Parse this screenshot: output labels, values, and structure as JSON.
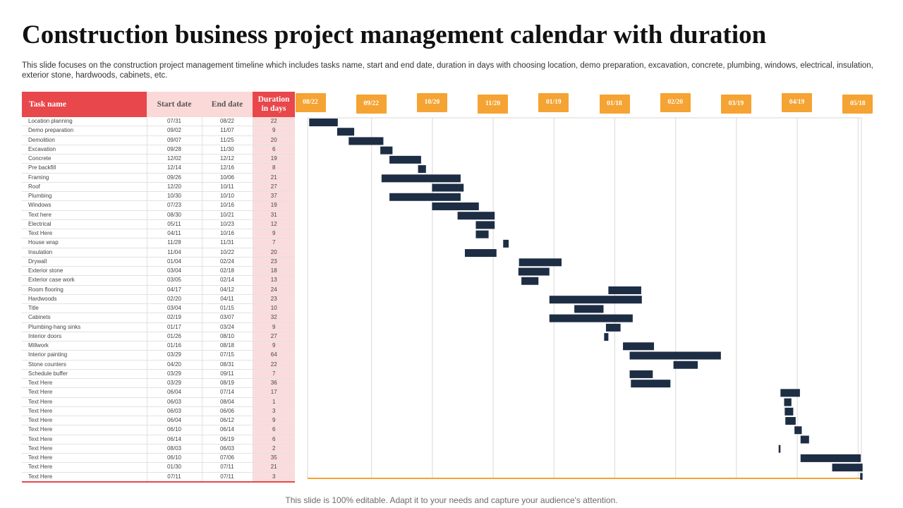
{
  "title": "Construction  business project management calendar with duration",
  "description": "This slide focuses on the construction project management timeline which includes tasks name, start and end date, duration in days with choosing location, demo preparation, excavation, concrete, plumbing, windows, electrical, insulation, exterior stone, hardwoods, cabinets, etc.",
  "footer": "This slide is 100% editable. Adapt it to your needs and capture your audience's attention.",
  "colors": {
    "accent_red": "#e8474b",
    "light_pink": "#fbd9d9",
    "orange": "#f5a333",
    "bar": "#1d2d44",
    "grid": "#d9d9d9"
  },
  "table": {
    "headers": {
      "task": "Task name",
      "start": "Start date",
      "end": "End date",
      "duration": "Duration in days"
    },
    "rows": [
      {
        "task": "Location  planning",
        "start": "07/31",
        "end": "08/22",
        "duration": "22"
      },
      {
        "task": "Demo preparation",
        "start": "09/02",
        "end": "11/07",
        "duration": "9"
      },
      {
        "task": "Demolition",
        "start": "09/07",
        "end": "11/25",
        "duration": "20"
      },
      {
        "task": "Excavation",
        "start": "09/28",
        "end": "11/30",
        "duration": "6"
      },
      {
        "task": "Concrete",
        "start": "12/02",
        "end": "12/12",
        "duration": "19"
      },
      {
        "task": "Pre backfill",
        "start": "12/14",
        "end": "12/16",
        "duration": "8"
      },
      {
        "task": "Framing",
        "start": "09/26",
        "end": "10/06",
        "duration": "21"
      },
      {
        "task": "Roof",
        "start": "12/20",
        "end": "10/11",
        "duration": "27"
      },
      {
        "task": "Plumbing",
        "start": "10/30",
        "end": "10/10",
        "duration": "37"
      },
      {
        "task": "Windows",
        "start": "07/23",
        "end": "10/16",
        "duration": "19"
      },
      {
        "task": "Text here",
        "start": "08/30",
        "end": "10/21",
        "duration": "31"
      },
      {
        "task": "Electrical",
        "start": "05/11",
        "end": "10/23",
        "duration": "12"
      },
      {
        "task": "Text Here",
        "start": "04/11",
        "end": "10/16",
        "duration": "9"
      },
      {
        "task": "House wrap",
        "start": "11/28",
        "end": "11/31",
        "duration": "7"
      },
      {
        "task": "Insulation",
        "start": "11/04",
        "end": "10/22",
        "duration": "20"
      },
      {
        "task": "Drywall",
        "start": "01/04",
        "end": "02/24",
        "duration": "23"
      },
      {
        "task": "Exterior stone",
        "start": "03/04",
        "end": "02/18",
        "duration": "18"
      },
      {
        "task": "Exterior case work",
        "start": "03/05",
        "end": "02/14",
        "duration": "13"
      },
      {
        "task": "Room flooring",
        "start": "04/17",
        "end": "04/12",
        "duration": "24"
      },
      {
        "task": "Hardwoods",
        "start": "02/20",
        "end": "04/11",
        "duration": "23"
      },
      {
        "task": "Title",
        "start": "03/04",
        "end": "01/15",
        "duration": "10"
      },
      {
        "task": "Cabinets",
        "start": "02/19",
        "end": "03/07",
        "duration": "32"
      },
      {
        "task": "Plumbing-hang  sinks",
        "start": "01/17",
        "end": "03/24",
        "duration": "9"
      },
      {
        "task": "Interior doors",
        "start": "01/26",
        "end": "08/10",
        "duration": "27"
      },
      {
        "task": "Millwork",
        "start": "01/16",
        "end": "08/18",
        "duration": "9"
      },
      {
        "task": "Interior painting",
        "start": "03/29",
        "end": "07/15",
        "duration": "64"
      },
      {
        "task": "Stone counters",
        "start": "04/20",
        "end": "08/31",
        "duration": "22"
      },
      {
        "task": "Schedule  buffer",
        "start": "03/29",
        "end": "09/11",
        "duration": "7"
      },
      {
        "task": "Text Here",
        "start": "03/29",
        "end": "08/19",
        "duration": "36"
      },
      {
        "task": "Text Here",
        "start": "06/04",
        "end": "07/14",
        "duration": "17"
      },
      {
        "task": "Text Here",
        "start": "06/03",
        "end": "08/04",
        "duration": "1"
      },
      {
        "task": "Text Here",
        "start": "06/03",
        "end": "06/06",
        "duration": "3"
      },
      {
        "task": "Text Here",
        "start": "06/04",
        "end": "06/12",
        "duration": "9"
      },
      {
        "task": "Text Here",
        "start": "06/10",
        "end": "06/14",
        "duration": "6"
      },
      {
        "task": "Text Here",
        "start": "06/14",
        "end": "06/19",
        "duration": "6"
      },
      {
        "task": "Text Here",
        "start": "08/03",
        "end": "06/03",
        "duration": "2"
      },
      {
        "task": "Text Here",
        "start": "06/10",
        "end": "07/06",
        "duration": "35"
      },
      {
        "task": "Text Here",
        "start": "01/30",
        "end": "07/11",
        "duration": "21"
      },
      {
        "task": "Text Here",
        "start": "07/11",
        "end": "07/11",
        "duration": "3"
      }
    ]
  },
  "chart_data": {
    "type": "gantt",
    "axis_labels": [
      "08/22",
      "09/22",
      "10/20",
      "11/20",
      "01/19",
      "01/18",
      "02/20",
      "03/19",
      "04/19",
      "05/18"
    ],
    "x_range": [
      -0.2,
      9.0
    ],
    "tasks": [
      {
        "start": -0.02,
        "end": 0.45
      },
      {
        "start": 0.44,
        "end": 0.72
      },
      {
        "start": 0.63,
        "end": 1.2
      },
      {
        "start": 1.15,
        "end": 1.35
      },
      {
        "start": 1.3,
        "end": 1.82
      },
      {
        "start": 1.77,
        "end": 1.9
      },
      {
        "start": 1.17,
        "end": 2.47
      },
      {
        "start": 2.0,
        "end": 2.52
      },
      {
        "start": 1.3,
        "end": 2.47
      },
      {
        "start": 2.0,
        "end": 2.77
      },
      {
        "start": 2.42,
        "end": 3.03
      },
      {
        "start": 2.72,
        "end": 3.03
      },
      {
        "start": 2.72,
        "end": 2.93
      },
      {
        "start": 3.17,
        "end": 3.26
      },
      {
        "start": 2.54,
        "end": 3.06
      },
      {
        "start": 3.43,
        "end": 4.13
      },
      {
        "start": 3.42,
        "end": 3.93
      },
      {
        "start": 3.47,
        "end": 3.75
      },
      {
        "start": 4.9,
        "end": 5.44
      },
      {
        "start": 3.93,
        "end": 5.45
      },
      {
        "start": 4.34,
        "end": 4.82
      },
      {
        "start": 3.93,
        "end": 5.3
      },
      {
        "start": 4.86,
        "end": 5.1
      },
      {
        "start": 4.83,
        "end": 4.9
      },
      {
        "start": 5.14,
        "end": 5.65
      },
      {
        "start": 5.25,
        "end": 6.75
      },
      {
        "start": 5.97,
        "end": 6.37
      },
      {
        "start": 5.25,
        "end": 5.63
      },
      {
        "start": 5.27,
        "end": 5.92
      },
      {
        "start": 7.73,
        "end": 8.05
      },
      {
        "start": 7.79,
        "end": 7.91
      },
      {
        "start": 7.8,
        "end": 7.94
      },
      {
        "start": 7.81,
        "end": 7.98
      },
      {
        "start": 7.96,
        "end": 8.08
      },
      {
        "start": 8.06,
        "end": 8.2
      },
      {
        "start": 7.7,
        "end": 7.73
      },
      {
        "start": 8.06,
        "end": 9.05
      },
      {
        "start": 8.58,
        "end": 9.08
      },
      {
        "start": 9.04,
        "end": 9.08
      }
    ]
  }
}
